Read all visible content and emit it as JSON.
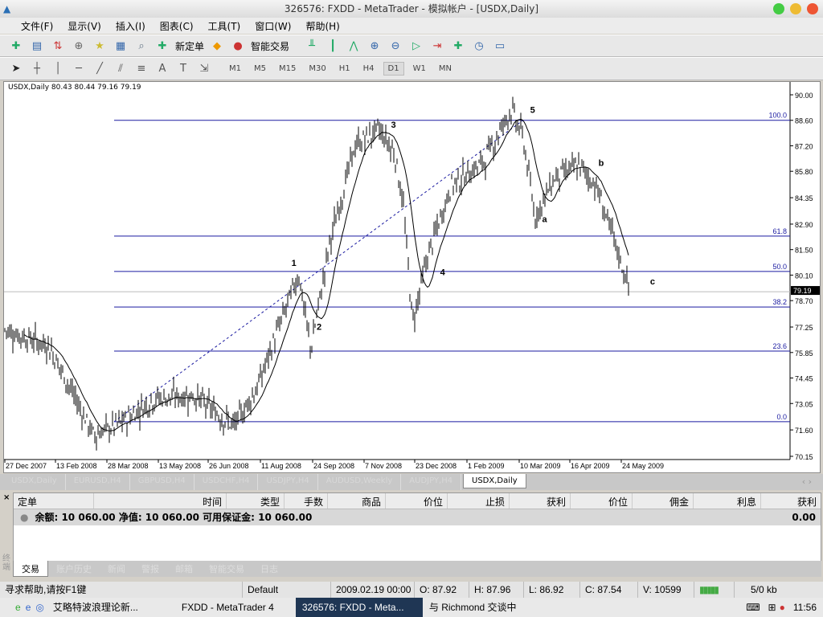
{
  "window": {
    "title": "326576: FXDD - MetaTrader - 模拟帐户 - [USDX,Daily]"
  },
  "menu": [
    "文件(F)",
    "显示(V)",
    "插入(I)",
    "图表(C)",
    "工具(T)",
    "窗口(W)",
    "帮助(H)"
  ],
  "toolbar": {
    "new_order": "新定单",
    "expert_advisors": "智能交易"
  },
  "timeframes": [
    "M1",
    "M5",
    "M15",
    "M30",
    "H1",
    "H4",
    "D1",
    "W1",
    "MN"
  ],
  "active_timeframe": "D1",
  "chart_tabs": [
    "USDX,Daily",
    "EURUSD,H4",
    "GBPUSD,H4",
    "USDCHF,H4",
    "USDJPY,H4",
    "AUDUSD,Weekly",
    "AUDJPY,H4",
    "USDX,Daily"
  ],
  "chart_data": {
    "type": "ohlc",
    "header": "USDX,Daily  80.43 80.44 79.16 79.19",
    "symbol": "USDX",
    "period": "Daily",
    "current_price": "79.19",
    "ylim": [
      70.15,
      90.6
    ],
    "y_ticks": [
      "90.00",
      "88.60",
      "87.20",
      "85.80",
      "84.35",
      "82.90",
      "81.50",
      "80.10",
      "78.70",
      "77.25",
      "75.85",
      "74.45",
      "73.05",
      "71.60",
      "70.15"
    ],
    "x_ticks": [
      "27 Dec 2007",
      "13 Feb 2008",
      "28 Mar 2008",
      "13 May 2008",
      "26 Jun 2008",
      "11 Aug 2008",
      "24 Sep 2008",
      "7 Nov 2008",
      "23 Dec 2008",
      "1 Feb 2009",
      "10 Mar 2009",
      "16 Apr 2009",
      "24 May 2009"
    ],
    "approx_close_path": [
      [
        "2007-12-27",
        77.1
      ],
      [
        "2008-02-02",
        76.2
      ],
      [
        "2008-03-10",
        71.3
      ],
      [
        "2008-04-02",
        72.0
      ],
      [
        "2008-04-29",
        73.3
      ],
      [
        "2008-06-01",
        73.5
      ],
      [
        "2008-07-05",
        71.8
      ],
      [
        "2008-07-25",
        74.0
      ],
      [
        "2008-08-08",
        76.6
      ],
      [
        "2008-08-28",
        80.2
      ],
      [
        "2008-09-07",
        76.0
      ],
      [
        "2008-09-23",
        81.9
      ],
      [
        "2008-10-14",
        87.2
      ],
      [
        "2008-11-03",
        88.1
      ],
      [
        "2008-11-16",
        86.8
      ],
      [
        "2008-11-23",
        84.1
      ],
      [
        "2008-12-01",
        77.5
      ],
      [
        "2008-12-13",
        81.0
      ],
      [
        "2009-01-02",
        85.0
      ],
      [
        "2009-01-29",
        86.3
      ],
      [
        "2009-02-21",
        89.2
      ],
      [
        "2009-03-03",
        87.7
      ],
      [
        "2009-03-13",
        83.3
      ],
      [
        "2009-03-30",
        85.5
      ],
      [
        "2009-04-19",
        86.1
      ],
      [
        "2009-05-03",
        85.0
      ],
      [
        "2009-05-16",
        82.4
      ],
      [
        "2009-05-28",
        79.9
      ],
      [
        "2009-05-31",
        79.19
      ]
    ],
    "fibonacci": [
      {
        "label": "100.0",
        "price": 88.6
      },
      {
        "label": "61.8",
        "price": 82.24
      },
      {
        "label": "50.0",
        "price": 80.3
      },
      {
        "label": "38.2",
        "price": 78.35
      },
      {
        "label": "23.6",
        "price": 75.93
      },
      {
        "label": "0.0",
        "price": 72.05
      }
    ],
    "wave_labels": [
      {
        "text": "1",
        "date": "2008-08-22",
        "price": 80.6
      },
      {
        "text": "2",
        "date": "2008-09-12",
        "price": 77.1
      },
      {
        "text": "3",
        "date": "2008-11-13",
        "price": 88.2
      },
      {
        "text": "4",
        "date": "2008-12-24",
        "price": 80.1
      },
      {
        "text": "5",
        "date": "2009-03-09",
        "price": 89.0
      },
      {
        "text": "a",
        "date": "2009-03-19",
        "price": 83.0
      },
      {
        "text": "b",
        "date": "2009-05-05",
        "price": 86.1
      },
      {
        "text": "c",
        "date": "2009-06-17",
        "price": 79.6
      }
    ],
    "colors": {
      "fib": "#1a1aa0",
      "bars": "#000000",
      "ma": "#000000"
    }
  },
  "terminal": {
    "columns": [
      "定单",
      "时间",
      "类型",
      "手数",
      "商品",
      "价位",
      "止损",
      "获利",
      "价位",
      "佣金",
      "利息",
      "获利"
    ],
    "balance_line": "余额: 10 060.00  净值: 10 060.00  可用保证金: 10 060.00",
    "profit": "0.00",
    "side_label": "终端",
    "tabs": [
      "交易",
      "账户历史",
      "新闻",
      "警报",
      "邮箱",
      "智能交易",
      "日志"
    ]
  },
  "status": {
    "help": "寻求帮助,请按F1键",
    "profile": "Default",
    "time": "2009.02.19 00:00",
    "open": "O: 87.92",
    "high": "H: 87.96",
    "low": "L: 86.92",
    "close": "C: 87.54",
    "volume": "V: 10599",
    "traffic": "5/0 kb"
  },
  "taskbar": {
    "items": [
      "艾略特波浪理论新...",
      "FXDD - MetaTrader 4",
      "326576: FXDD - Meta...",
      "与 Richmond 交谈中"
    ],
    "clock": "11:56"
  }
}
